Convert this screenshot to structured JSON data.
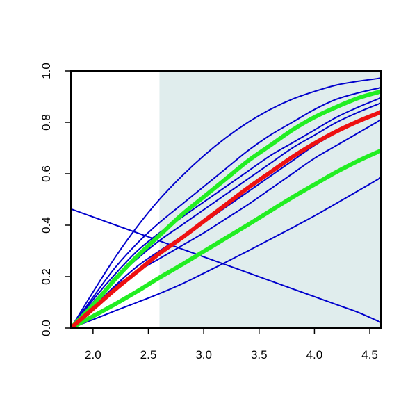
{
  "chart_data": {
    "type": "line",
    "title": "",
    "xlabel": "",
    "ylabel": "",
    "xlim": [
      1.8,
      4.6
    ],
    "ylim": [
      0,
      1
    ],
    "x_ticks": [
      "2.0",
      "2.5",
      "3.0",
      "3.5",
      "4.0",
      "4.5"
    ],
    "y_ticks": [
      "0.0",
      "0.2",
      "0.4",
      "0.6",
      "0.8",
      "1.0"
    ],
    "shaded_region": {
      "x": [
        2.6,
        4.6
      ],
      "color": "#e0eded"
    },
    "x": [
      1.8,
      2.0,
      2.2,
      2.4,
      2.6,
      2.8,
      3.0,
      3.2,
      3.4,
      3.6,
      3.8,
      4.0,
      4.2,
      4.4,
      4.6
    ],
    "series": [
      {
        "color": "#0000cc",
        "width": "thin",
        "values": [
          0.463,
          0.432,
          0.401,
          0.37,
          0.339,
          0.308,
          0.277,
          0.246,
          0.215,
          0.184,
          0.153,
          0.122,
          0.091,
          0.06,
          0.022
        ]
      },
      {
        "color": "#0000cc",
        "width": "thin",
        "values": [
          0.0,
          0.033,
          0.067,
          0.1,
          0.134,
          0.171,
          0.213,
          0.256,
          0.3,
          0.345,
          0.39,
          0.436,
          0.485,
          0.535,
          0.585
        ]
      },
      {
        "color": "#0000cc",
        "width": "thin",
        "values": [
          0.0,
          0.08,
          0.16,
          0.22,
          0.27,
          0.32,
          0.37,
          0.425,
          0.48,
          0.54,
          0.6,
          0.66,
          0.71,
          0.76,
          0.81
        ]
      },
      {
        "color": "#0000cc",
        "width": "thin",
        "values": [
          0.0,
          0.08,
          0.165,
          0.24,
          0.3,
          0.355,
          0.41,
          0.47,
          0.53,
          0.59,
          0.65,
          0.71,
          0.76,
          0.805,
          0.845
        ]
      },
      {
        "color": "#0000cc",
        "width": "thin",
        "values": [
          0.0,
          0.1,
          0.19,
          0.27,
          0.34,
          0.4,
          0.46,
          0.52,
          0.58,
          0.64,
          0.7,
          0.75,
          0.8,
          0.84,
          0.875
        ]
      },
      {
        "color": "#0000cc",
        "width": "thin",
        "values": [
          0.0,
          0.11,
          0.21,
          0.3,
          0.37,
          0.43,
          0.49,
          0.55,
          0.61,
          0.67,
          0.72,
          0.77,
          0.82,
          0.86,
          0.895
        ]
      },
      {
        "color": "#0000cc",
        "width": "thin",
        "values": [
          0.0,
          0.12,
          0.235,
          0.33,
          0.41,
          0.48,
          0.55,
          0.62,
          0.69,
          0.75,
          0.8,
          0.85,
          0.89,
          0.915,
          0.935
        ]
      },
      {
        "color": "#0000cc",
        "width": "thin",
        "values": [
          0.0,
          0.14,
          0.275,
          0.395,
          0.5,
          0.59,
          0.67,
          0.74,
          0.8,
          0.85,
          0.89,
          0.92,
          0.945,
          0.96,
          0.972
        ]
      },
      {
        "color": "#22ee22",
        "width": "thick",
        "values": [
          0.0,
          0.046,
          0.093,
          0.143,
          0.196,
          0.246,
          0.298,
          0.35,
          0.402,
          0.455,
          0.508,
          0.558,
          0.607,
          0.651,
          0.69
        ]
      },
      {
        "color": "#22ee22",
        "width": "thick",
        "values": [
          0.0,
          0.09,
          0.19,
          0.28,
          0.36,
          0.44,
          0.51,
          0.58,
          0.65,
          0.71,
          0.77,
          0.82,
          0.86,
          0.895,
          0.92
        ]
      },
      {
        "color": "#ee1111",
        "width": "thick",
        "values": [
          0.0,
          0.075,
          0.15,
          0.22,
          0.29,
          0.35,
          0.415,
          0.48,
          0.545,
          0.605,
          0.665,
          0.718,
          0.765,
          0.805,
          0.84
        ]
      }
    ]
  }
}
